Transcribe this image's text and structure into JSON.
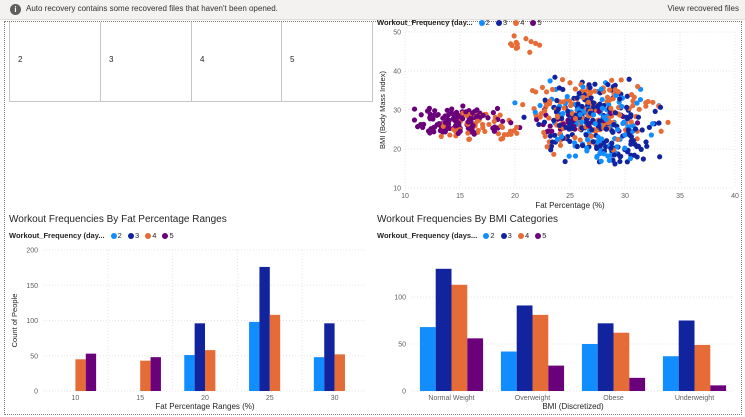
{
  "notification": {
    "message": "Auto recovery contains some recovered files that haven't been opened.",
    "link": "View recovered files"
  },
  "table_visual": {
    "cells": [
      "2",
      "3",
      "4",
      "5"
    ]
  },
  "colors": {
    "2": "#118dff",
    "3": "#12239e",
    "4": "#e66c37",
    "5": "#6b007b"
  },
  "scatter": {
    "legend_title": "Workout_Frequency (day...",
    "legend_items": [
      "2",
      "3",
      "4",
      "5"
    ],
    "chart_data": {
      "type": "scatter",
      "xlabel": "Fat Percentage (%)",
      "ylabel": "BMI (Body Mass Index)",
      "xlim": [
        10,
        40
      ],
      "ylim": [
        10,
        50
      ],
      "x_ticks": [
        "10",
        "15",
        "20",
        "25",
        "30",
        "35",
        "40"
      ],
      "y_ticks": [
        "10",
        "20",
        "30",
        "40",
        "50"
      ],
      "grid": true,
      "legend_position": "top-left",
      "series": [
        {
          "name": "2",
          "clusters": [
            [
              27,
              28,
              90,
              4.5,
              7
            ],
            [
              28,
              20,
              25,
              2,
              3
            ]
          ]
        },
        {
          "name": "3",
          "clusters": [
            [
              27.5,
              27,
              170,
              4.5,
              7.5
            ],
            [
              29,
              19,
              25,
              2,
              3
            ]
          ]
        },
        {
          "name": "4",
          "clusters": [
            [
              26.5,
              29,
              150,
              5,
              7.5
            ],
            [
              17,
              26,
              50,
              2.5,
              3.5
            ],
            [
              21,
              47,
              12,
              1.5,
              2
            ]
          ]
        },
        {
          "name": "5",
          "clusters": [
            [
              15,
              27,
              110,
              3.5,
              3.5
            ],
            [
              25,
              27,
              30,
              4,
              3
            ]
          ]
        }
      ]
    }
  },
  "bar_fat": {
    "title": "Workout Frequencies By Fat Percentage Ranges",
    "legend_title": "Workout_Frequency (day...",
    "legend_items": [
      "2",
      "3",
      "4",
      "5"
    ],
    "chart_data": {
      "type": "bar",
      "categories": [
        "10",
        "15",
        "20",
        "25",
        "30"
      ],
      "xlabel": "Fat Percentage Ranges (%)",
      "ylabel": "Count of People",
      "ylim": [
        0,
        200
      ],
      "y_ticks": [
        "0",
        "50",
        "100",
        "150",
        "200"
      ],
      "grid": true,
      "legend_position": "top-left",
      "series": [
        {
          "name": "2",
          "values": [
            0,
            0,
            51,
            98,
            48
          ]
        },
        {
          "name": "3",
          "values": [
            0,
            0,
            96,
            176,
            96
          ]
        },
        {
          "name": "4",
          "values": [
            45,
            43,
            58,
            108,
            52
          ]
        },
        {
          "name": "5",
          "values": [
            53,
            48,
            0,
            0,
            0
          ]
        }
      ]
    }
  },
  "bar_bmi": {
    "title": "Workout Frequencies By BMI Categories",
    "legend_title": "Workout_Frequency (days...",
    "legend_items": [
      "2",
      "3",
      "4",
      "5"
    ],
    "chart_data": {
      "type": "bar",
      "categories": [
        "Normal Weight",
        "Overweight",
        "Obese",
        "Underweight"
      ],
      "xlabel": "BMI (Discretized)",
      "ylabel": "",
      "ylim": [
        0,
        150
      ],
      "y_ticks": [
        "0",
        "50",
        "100"
      ],
      "grid": true,
      "legend_position": "top-left",
      "series": [
        {
          "name": "2",
          "values": [
            68,
            42,
            50,
            37
          ]
        },
        {
          "name": "3",
          "values": [
            130,
            91,
            72,
            75
          ]
        },
        {
          "name": "4",
          "values": [
            113,
            81,
            62,
            49
          ]
        },
        {
          "name": "5",
          "values": [
            56,
            27,
            14,
            6
          ]
        }
      ]
    }
  }
}
